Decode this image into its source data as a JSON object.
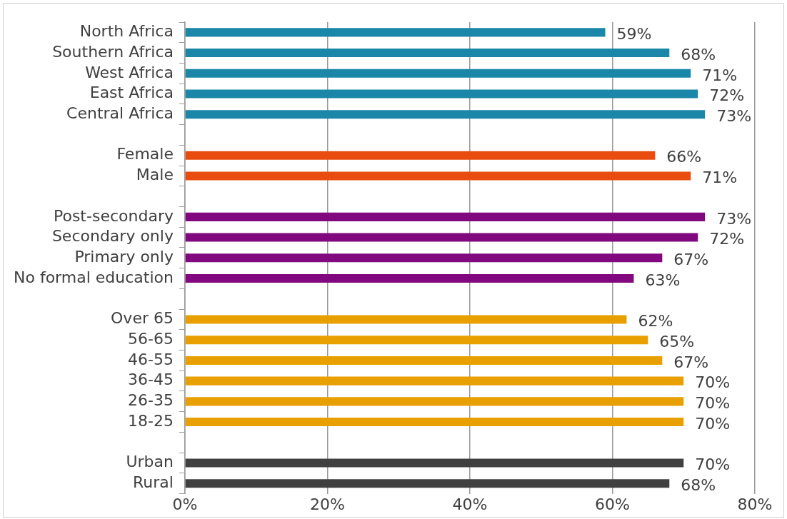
{
  "chart_data": {
    "type": "bar",
    "orientation": "horizontal",
    "categories": [
      "North Africa",
      "Southern Africa",
      "West Africa",
      "East Africa",
      "Central Africa",
      null,
      "Female",
      "Male",
      null,
      "Post-secondary",
      "Secondary only",
      "Primary only",
      "No formal education",
      null,
      "Over 65",
      "56-65",
      "46-55",
      "36-45",
      "26-35",
      "18-25",
      null,
      "Urban",
      "Rural"
    ],
    "values": [
      59,
      68,
      71,
      72,
      73,
      null,
      66,
      71,
      null,
      73,
      72,
      67,
      63,
      null,
      62,
      65,
      67,
      70,
      70,
      70,
      null,
      70,
      68
    ],
    "colors": [
      "#1a87a8",
      "#1a87a8",
      "#1a87a8",
      "#1a87a8",
      "#1a87a8",
      null,
      "#e84c0e",
      "#e84c0e",
      null,
      "#82087f",
      "#82087f",
      "#82087f",
      "#82087f",
      null,
      "#e8a000",
      "#e8a000",
      "#e8a000",
      "#e8a000",
      "#e8a000",
      "#e8a000",
      null,
      "#404040",
      "#404040"
    ],
    "xlim": [
      0,
      80
    ],
    "xticks": [
      {
        "value": 0,
        "label": "0%"
      },
      {
        "value": 20,
        "label": "20%"
      },
      {
        "value": 40,
        "label": "40%"
      },
      {
        "value": 60,
        "label": "60%"
      },
      {
        "value": 80,
        "label": "80%"
      }
    ],
    "value_labels": [
      "59%",
      "68%",
      "71%",
      "72%",
      "73%",
      null,
      "66%",
      "71%",
      null,
      "73%",
      "72%",
      "67%",
      "63%",
      null,
      "62%",
      "65%",
      "67%",
      "70%",
      "70%",
      "70%",
      null,
      "70%",
      "68%"
    ],
    "grid": "x",
    "legend": false
  }
}
